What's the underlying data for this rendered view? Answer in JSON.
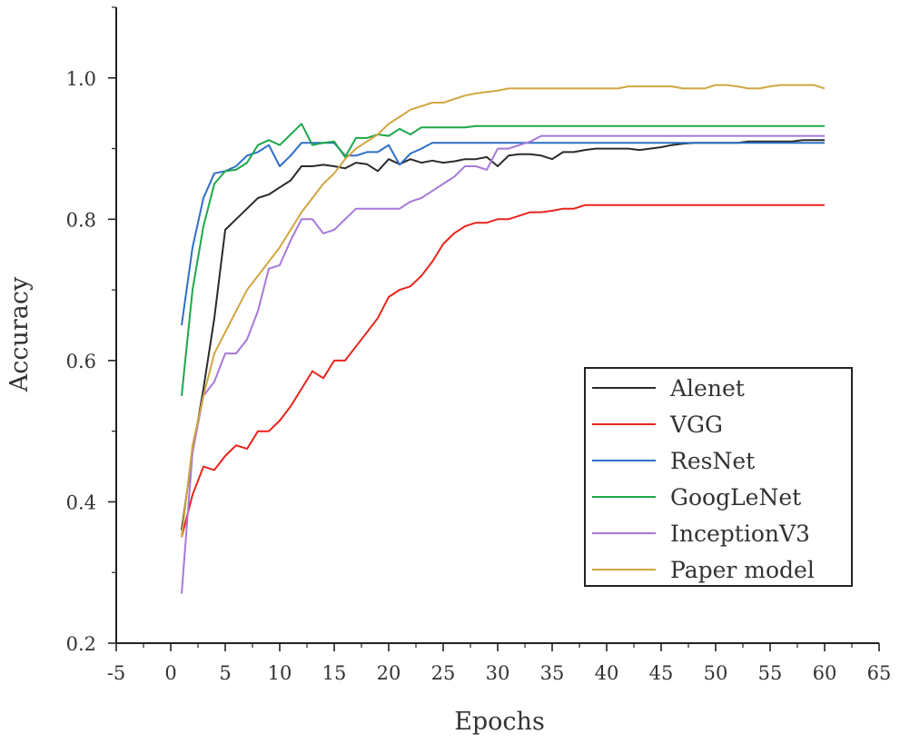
{
  "chart_data": {
    "type": "line",
    "title": "",
    "xlabel": "Epochs",
    "ylabel": "Accuracy",
    "xlim": [
      -5,
      65
    ],
    "ylim": [
      0.2,
      1.1
    ],
    "xticks": [
      -5,
      0,
      5,
      10,
      15,
      20,
      25,
      30,
      35,
      40,
      45,
      50,
      55,
      60,
      65
    ],
    "xtick_labels": [
      "-5",
      "0",
      "5",
      "10",
      "15",
      "20",
      "25",
      "30",
      "35",
      "40",
      "45",
      "50",
      "55",
      "60",
      "65"
    ],
    "yticks": [
      0.2,
      0.4,
      0.6,
      0.8,
      1.0
    ],
    "ytick_labels": [
      "0.2",
      "0.4",
      "0.6",
      "0.8",
      "1.0"
    ],
    "grid": false,
    "legend_position": "lower-right",
    "series": [
      {
        "name": "Alenet",
        "color": "#2b2b2b",
        "x": [
          1,
          2,
          3,
          4,
          5,
          6,
          7,
          8,
          9,
          10,
          11,
          12,
          13,
          14,
          15,
          16,
          17,
          18,
          19,
          20,
          21,
          22,
          23,
          24,
          25,
          26,
          27,
          28,
          29,
          30,
          31,
          32,
          33,
          34,
          35,
          36,
          37,
          38,
          39,
          40,
          41,
          42,
          43,
          44,
          45,
          46,
          47,
          48,
          49,
          50,
          51,
          52,
          53,
          54,
          55,
          56,
          57,
          58,
          59,
          60
        ],
        "y": [
          0.36,
          0.47,
          0.56,
          0.66,
          0.785,
          0.8,
          0.815,
          0.83,
          0.835,
          0.845,
          0.855,
          0.875,
          0.875,
          0.877,
          0.875,
          0.872,
          0.88,
          0.878,
          0.868,
          0.885,
          0.878,
          0.885,
          0.88,
          0.883,
          0.88,
          0.882,
          0.885,
          0.885,
          0.888,
          0.875,
          0.89,
          0.892,
          0.892,
          0.89,
          0.885,
          0.895,
          0.895,
          0.898,
          0.9,
          0.9,
          0.9,
          0.9,
          0.898,
          0.9,
          0.902,
          0.905,
          0.907,
          0.908,
          0.908,
          0.908,
          0.908,
          0.908,
          0.91,
          0.91,
          0.91,
          0.91,
          0.91,
          0.912,
          0.912,
          0.912
        ]
      },
      {
        "name": "VGG",
        "color": "#e8241c",
        "x": [
          1,
          2,
          3,
          4,
          5,
          6,
          7,
          8,
          9,
          10,
          11,
          12,
          13,
          14,
          15,
          16,
          17,
          18,
          19,
          20,
          21,
          22,
          23,
          24,
          25,
          26,
          27,
          28,
          29,
          30,
          31,
          32,
          33,
          34,
          35,
          36,
          37,
          38,
          40,
          45,
          50,
          55,
          60
        ],
        "y": [
          0.35,
          0.41,
          0.45,
          0.445,
          0.465,
          0.48,
          0.475,
          0.5,
          0.5,
          0.515,
          0.535,
          0.56,
          0.585,
          0.575,
          0.6,
          0.6,
          0.62,
          0.64,
          0.66,
          0.69,
          0.7,
          0.705,
          0.72,
          0.74,
          0.765,
          0.78,
          0.79,
          0.795,
          0.795,
          0.8,
          0.8,
          0.805,
          0.81,
          0.81,
          0.812,
          0.815,
          0.815,
          0.82,
          0.82,
          0.82,
          0.82,
          0.82,
          0.82
        ]
      },
      {
        "name": "ResNet",
        "color": "#2e6fc8",
        "x": [
          1,
          2,
          3,
          4,
          5,
          6,
          7,
          8,
          9,
          10,
          11,
          12,
          13,
          14,
          15,
          16,
          17,
          18,
          19,
          20,
          21,
          22,
          23,
          24,
          25,
          26,
          27,
          28,
          29,
          30,
          31,
          32,
          33,
          34,
          35,
          40,
          45,
          50,
          55,
          60
        ],
        "y": [
          0.65,
          0.76,
          0.83,
          0.865,
          0.868,
          0.875,
          0.89,
          0.895,
          0.905,
          0.875,
          0.89,
          0.908,
          0.908,
          0.908,
          0.908,
          0.89,
          0.89,
          0.895,
          0.895,
          0.905,
          0.877,
          0.893,
          0.9,
          0.908,
          0.908,
          0.908,
          0.908,
          0.908,
          0.908,
          0.908,
          0.908,
          0.908,
          0.908,
          0.908,
          0.908,
          0.908,
          0.908,
          0.908,
          0.908,
          0.908
        ]
      },
      {
        "name": "GoogLeNet",
        "color": "#1ea84a",
        "x": [
          1,
          2,
          3,
          4,
          5,
          6,
          7,
          8,
          9,
          10,
          11,
          12,
          13,
          14,
          15,
          16,
          17,
          18,
          19,
          20,
          21,
          22,
          23,
          24,
          25,
          26,
          27,
          28,
          29,
          30,
          31,
          32,
          33,
          34,
          35,
          40,
          45,
          50,
          55,
          60
        ],
        "y": [
          0.55,
          0.7,
          0.79,
          0.85,
          0.868,
          0.87,
          0.88,
          0.905,
          0.912,
          0.905,
          0.92,
          0.935,
          0.905,
          0.908,
          0.91,
          0.888,
          0.915,
          0.915,
          0.92,
          0.918,
          0.928,
          0.92,
          0.93,
          0.93,
          0.93,
          0.93,
          0.93,
          0.932,
          0.932,
          0.932,
          0.932,
          0.932,
          0.932,
          0.932,
          0.932,
          0.932,
          0.932,
          0.932,
          0.932,
          0.932
        ]
      },
      {
        "name": "InceptionV3",
        "color": "#a878d8",
        "x": [
          1,
          2,
          3,
          4,
          5,
          6,
          7,
          8,
          9,
          10,
          11,
          12,
          13,
          14,
          15,
          16,
          17,
          18,
          19,
          20,
          21,
          22,
          23,
          24,
          25,
          26,
          27,
          28,
          29,
          30,
          31,
          32,
          33,
          34,
          35,
          40,
          45,
          50,
          55,
          60
        ],
        "y": [
          0.27,
          0.47,
          0.55,
          0.57,
          0.61,
          0.61,
          0.63,
          0.67,
          0.73,
          0.735,
          0.77,
          0.8,
          0.8,
          0.78,
          0.785,
          0.8,
          0.815,
          0.815,
          0.815,
          0.815,
          0.815,
          0.825,
          0.83,
          0.84,
          0.85,
          0.86,
          0.875,
          0.875,
          0.87,
          0.9,
          0.9,
          0.905,
          0.91,
          0.918,
          0.918,
          0.918,
          0.918,
          0.918,
          0.918,
          0.918
        ]
      },
      {
        "name": "Paper model",
        "color": "#d0a640",
        "x": [
          1,
          2,
          3,
          4,
          5,
          6,
          7,
          8,
          9,
          10,
          11,
          12,
          13,
          14,
          15,
          16,
          17,
          18,
          19,
          20,
          21,
          22,
          23,
          24,
          25,
          26,
          27,
          28,
          29,
          30,
          31,
          32,
          33,
          34,
          35,
          36,
          37,
          38,
          39,
          40,
          41,
          42,
          43,
          44,
          45,
          46,
          47,
          48,
          49,
          50,
          51,
          52,
          53,
          54,
          55,
          56,
          57,
          58,
          59,
          60
        ],
        "y": [
          0.35,
          0.48,
          0.55,
          0.61,
          0.64,
          0.67,
          0.7,
          0.72,
          0.74,
          0.76,
          0.785,
          0.81,
          0.83,
          0.85,
          0.865,
          0.885,
          0.9,
          0.91,
          0.92,
          0.935,
          0.945,
          0.955,
          0.96,
          0.965,
          0.965,
          0.97,
          0.975,
          0.978,
          0.98,
          0.982,
          0.985,
          0.985,
          0.985,
          0.985,
          0.985,
          0.985,
          0.985,
          0.985,
          0.985,
          0.985,
          0.985,
          0.988,
          0.988,
          0.988,
          0.988,
          0.988,
          0.985,
          0.985,
          0.985,
          0.99,
          0.99,
          0.988,
          0.985,
          0.985,
          0.988,
          0.99,
          0.99,
          0.99,
          0.99,
          0.985
        ]
      }
    ]
  }
}
